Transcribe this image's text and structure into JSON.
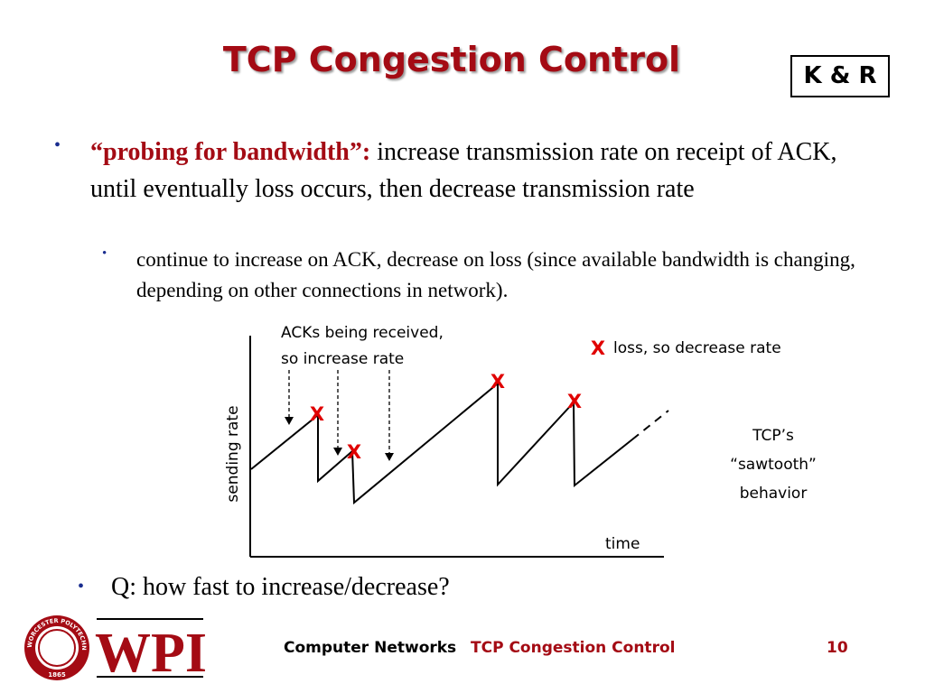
{
  "slide": {
    "title": "TCP Congestion Control",
    "badge": "K & R"
  },
  "bullet1": {
    "marker": "•",
    "lead": "“probing for bandwidth”:",
    "body": " increase transmission rate on receipt of ACK, until eventually loss occurs, then decrease transmission rate"
  },
  "sub_bullet": {
    "marker": "•",
    "text": "continue to increase on ACK, decrease on loss (since available bandwidth is changing, depending on other connections in network)."
  },
  "diagram": {
    "ack_label_line1": "ACKs being received,",
    "ack_label_line2": "so increase rate",
    "loss_marker": "X",
    "loss_label": "loss, so decrease rate",
    "ylabel": "sending rate",
    "xlabel": "time",
    "caption_line1": "TCP’s",
    "caption_line2": "“sawtooth”",
    "caption_line3": "behavior",
    "line_color": "#000000",
    "loss_color": "#e00000"
  },
  "bullet2": {
    "marker": "•",
    "text": "Q: how fast to increase/decrease?"
  },
  "logo": {
    "text": "WPI",
    "seal_text": "WORCESTER POLYTECHNIC INSTITUTE",
    "seal_year": "1865"
  },
  "footer": {
    "course": "Computer Networks",
    "topic": "TCP Congestion Control",
    "page": "10",
    "topic_color": "#a40b14"
  }
}
